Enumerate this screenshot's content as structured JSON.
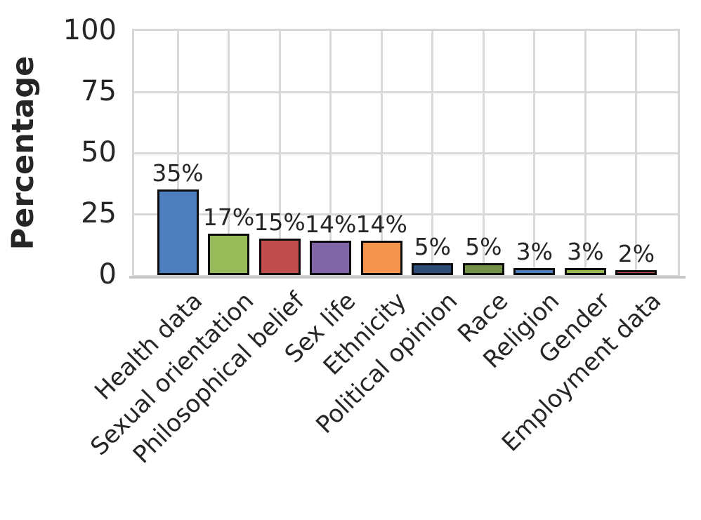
{
  "chart_data": {
    "type": "bar",
    "title": "",
    "xlabel": "",
    "ylabel": "Percentage",
    "ylim": [
      0,
      100
    ],
    "yticks": [
      0,
      25,
      50,
      75,
      100
    ],
    "ytick_labels": [
      "0",
      "25",
      "50",
      "75",
      "100"
    ],
    "grid": true,
    "legend": "none",
    "categories": [
      "Health data",
      "Sexual orientation",
      "Philosophical belief",
      "Sex life",
      "Ethnicity",
      "Political opinion",
      "Race",
      "Religion",
      "Gender",
      "Employment data"
    ],
    "values": [
      35,
      17,
      15,
      14,
      14,
      5,
      5,
      3,
      3,
      2
    ],
    "value_labels": [
      "35%",
      "17%",
      "15%",
      "14%",
      "14%",
      "5%",
      "5%",
      "3%",
      "3%",
      "2%"
    ],
    "bar_colors": [
      "#4d7fbe",
      "#99ba58",
      "#c24d4e",
      "#8066a6",
      "#f5944c",
      "#2e4c78",
      "#75924b",
      "#4d7fbe",
      "#99ba58",
      "#c8504f"
    ],
    "bar_edge_color": "#0d0d0d",
    "grid_color": "#d9d9d9",
    "text_color": "#262626",
    "background_color": "#ffffff"
  }
}
